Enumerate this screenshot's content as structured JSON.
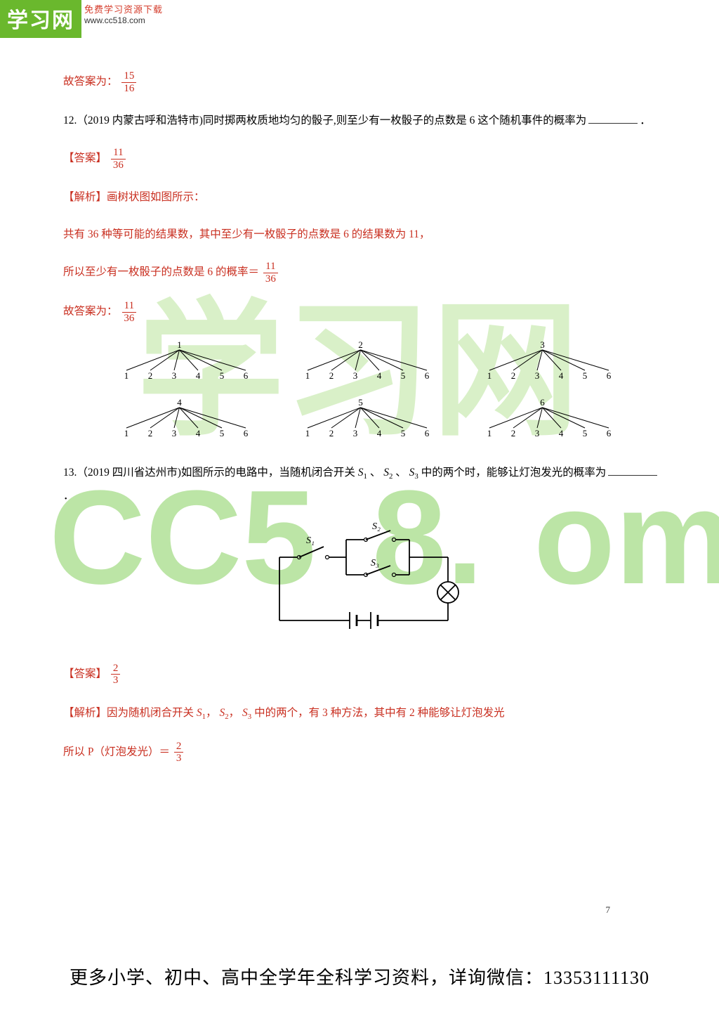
{
  "logo": {
    "badge": "学习网",
    "subTop": "免费学习资源下载",
    "subBot": "www.cc518.com"
  },
  "watermark": {
    "chinese_color": "#d9f0c8",
    "latin_color": "#bce5a6",
    "chinese": "学习网",
    "latin_parts": [
      "CC5",
      "8.",
      "om"
    ]
  },
  "answers": {
    "ans11": {
      "label": "故答案为：",
      "num": "15",
      "den": "16"
    },
    "q12_label": "【答案】",
    "q12_num": "11",
    "q12_den": "36",
    "jiexi_label": "【解析】",
    "jiexi12": "画树状图如图所示：",
    "line12a": "共有 36 种等可能的结果数，其中至少有一枚骰子的点数是 6 的结果数为 11，",
    "line12b_prefix": "所以至少有一枚骰子的点数是 6 的概率＝",
    "ans12_label": "故答案为：",
    "q13_label": "【答案】",
    "q13_num": "2",
    "q13_den": "3",
    "jiexi13": "因为随机闭合开关 ",
    "jiexi13_mid": " 中的两个，有 3 种方法，其中有 2 种能够让灯泡发光",
    "p13_prefix": "所以 P（灯泡发光）＝"
  },
  "questions": {
    "q12": "12.（2019 内蒙古呼和浩特市)同时掷两枚质地均匀的骰子,则至少有一枚骰子的点数是 6 这个随机事件的概率为",
    "q12_end": "．",
    "q13_a": "13.（2019 四川省达州市)如图所示的电路中，当随机闭合开关 ",
    "q13_b": "、",
    "q13_c": " 中的两个时，能够让灯泡发光的概率为",
    "q13_end": "．"
  },
  "switches": {
    "s1": "S",
    "s2": "S",
    "s3": "S",
    "n1": "1",
    "n2": "2",
    "n3": "3"
  },
  "subs": {
    "s": "S",
    "comma": "，"
  },
  "tree": {
    "roots": [
      "1",
      "2",
      "3",
      "4",
      "5",
      "6"
    ],
    "leaves": [
      "1",
      "2",
      "3",
      "4",
      "5",
      "6"
    ],
    "stroke": "#000000",
    "text_color": "#000000",
    "font_size": 13
  },
  "circuit": {
    "labels": {
      "s1": "S₁",
      "s2": "S₂",
      "s3": "S₃"
    },
    "stroke": "#000000",
    "stroke_width": 1.8
  },
  "pageNum": "7",
  "footer": "更多小学、初中、高中全学年全科学习资料，详询微信：13353111130"
}
